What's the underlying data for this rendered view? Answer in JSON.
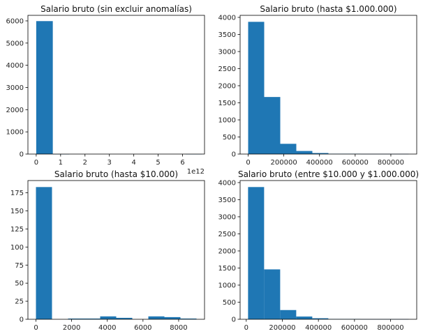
{
  "colors": {
    "bar": "#1f77b4",
    "axis": "#000000",
    "background": "#ffffff"
  },
  "chart_data": [
    {
      "type": "bar",
      "title": "Salario bruto (sin excluir anomalías)",
      "xlabel": "",
      "ylabel": "",
      "x_offset_label": "1e12",
      "xlim": [
        -0.34,
        6.9
      ],
      "ylim": [
        0,
        6250
      ],
      "xticks": [
        0,
        1,
        2,
        3,
        4,
        5,
        6
      ],
      "xtick_labels": [
        "0",
        "1",
        "2",
        "3",
        "4",
        "5",
        "6"
      ],
      "yticks": [
        0,
        1000,
        2000,
        3000,
        4000,
        5000,
        6000
      ],
      "ytick_labels": [
        "0",
        "1000",
        "2000",
        "3000",
        "4000",
        "5000",
        "6000"
      ],
      "bin_edges": [
        0,
        0.68,
        1.36,
        2.04,
        2.72,
        3.4,
        4.08,
        4.76,
        5.44,
        6.12,
        6.8
      ],
      "counts": [
        5990,
        1,
        0,
        0,
        0,
        0,
        0,
        0,
        0,
        1
      ]
    },
    {
      "type": "bar",
      "title": "Salario bruto (hasta $1.000.000)",
      "xlabel": "",
      "ylabel": "",
      "xlim": [
        -45000,
        945000
      ],
      "ylim": [
        0,
        4060
      ],
      "xticks": [
        0,
        200000,
        400000,
        600000,
        800000
      ],
      "xtick_labels": [
        "0",
        "200000",
        "400000",
        "600000",
        "800000"
      ],
      "yticks": [
        0,
        500,
        1000,
        1500,
        2000,
        2500,
        3000,
        3500,
        4000
      ],
      "ytick_labels": [
        "0",
        "500",
        "1000",
        "1500",
        "2000",
        "2500",
        "3000",
        "3500",
        "4000"
      ],
      "bin_edges": [
        0,
        90000,
        180000,
        270000,
        360000,
        450000,
        540000,
        630000,
        720000,
        810000,
        900000
      ],
      "counts": [
        3870,
        1670,
        300,
        90,
        30,
        10,
        10,
        5,
        5,
        5
      ]
    },
    {
      "type": "bar",
      "title": "Salario bruto (hasta $10.000)",
      "xlabel": "",
      "ylabel": "",
      "xlim": [
        -450,
        9450
      ],
      "ylim": [
        0,
        192
      ],
      "xticks": [
        0,
        2000,
        4000,
        6000,
        8000
      ],
      "xtick_labels": [
        "0",
        "2000",
        "4000",
        "6000",
        "8000"
      ],
      "yticks": [
        0,
        25,
        50,
        75,
        100,
        125,
        150,
        175
      ],
      "ytick_labels": [
        "0",
        "25",
        "50",
        "75",
        "100",
        "125",
        "150",
        "175"
      ],
      "bin_edges": [
        0,
        900,
        1800,
        2700,
        3600,
        4500,
        5400,
        6300,
        7200,
        8100,
        9000
      ],
      "counts": [
        183,
        0,
        1,
        1,
        4,
        2,
        0,
        4,
        3,
        1
      ]
    },
    {
      "type": "bar",
      "title": "Salario bruto (entre $10.000 y $1.000.000)",
      "xlabel": "",
      "ylabel": "",
      "xlim": [
        -34000,
        945000
      ],
      "ylim": [
        0,
        4060
      ],
      "xticks": [
        0,
        200000,
        400000,
        600000,
        800000
      ],
      "xtick_labels": [
        "0",
        "200000",
        "400000",
        "600000",
        "800000"
      ],
      "yticks": [
        0,
        500,
        1000,
        1500,
        2000,
        2500,
        3000,
        3500,
        4000
      ],
      "ytick_labels": [
        "0",
        "500",
        "1000",
        "1500",
        "2000",
        "2500",
        "3000",
        "3500",
        "4000"
      ],
      "bin_edges": [
        10000,
        99000,
        188000,
        277000,
        366000,
        455000,
        544000,
        633000,
        722000,
        811000,
        900000
      ],
      "counts": [
        3870,
        1460,
        270,
        80,
        30,
        10,
        10,
        5,
        5,
        5
      ]
    }
  ]
}
